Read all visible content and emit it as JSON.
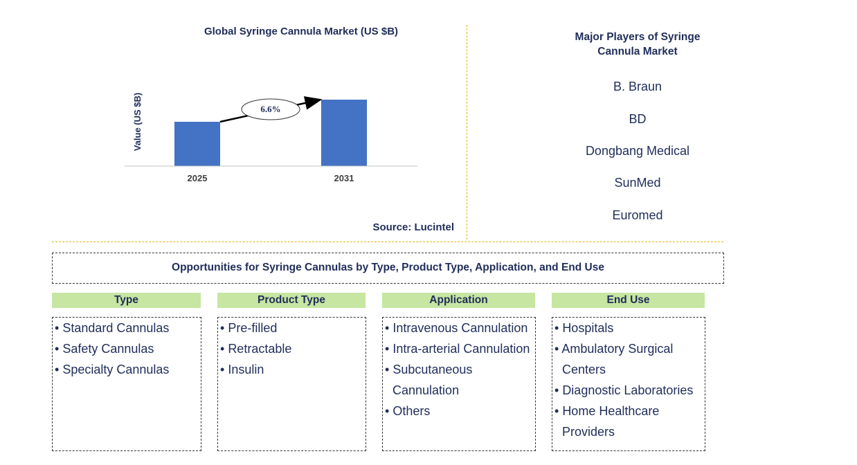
{
  "chart_data": {
    "type": "bar",
    "title": "Global Syringe Cannula Market (US $B)",
    "ylabel": "Value (US $B)",
    "categories": [
      "2025",
      "2031"
    ],
    "values": [
      1.0,
      1.5
    ],
    "annotation": "6.6%",
    "source": "Source: Lucintel",
    "bar_color": "#4472c4"
  },
  "players": {
    "title": "Major Players of Syringe Cannula Market",
    "items": [
      "B. Braun",
      "BD",
      "Dongbang Medical",
      "SunMed",
      "Euromed"
    ]
  },
  "opportunities": {
    "title": "Opportunities for Syringe Cannulas by Type, Product Type, Application, and End Use",
    "categories": [
      {
        "name": "Type",
        "items": [
          "Standard Cannulas",
          "Safety Cannulas",
          "Specialty Cannulas"
        ]
      },
      {
        "name": "Product Type",
        "items": [
          "Pre-filled",
          "Retractable",
          "Insulin"
        ]
      },
      {
        "name": "Application",
        "items": [
          "Intravenous Cannulation",
          "Intra-arterial Cannulation",
          "Subcutaneous Cannulation",
          "Others"
        ]
      },
      {
        "name": "End Use",
        "items": [
          "Hospitals",
          "Ambulatory Surgical Centers",
          "Diagnostic Laboratories",
          "Home Healthcare Providers"
        ]
      }
    ]
  }
}
